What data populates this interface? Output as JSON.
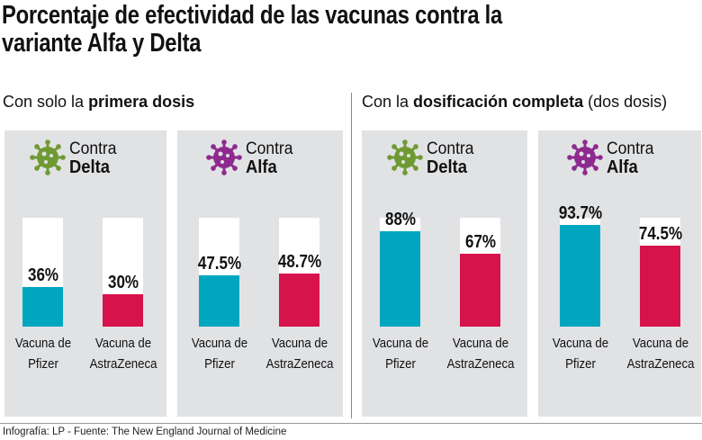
{
  "title_line1": "Porcentaje de efectividad de las vacunas contra la",
  "title_line2": "variante Alfa y Delta",
  "sections": [
    {
      "prefix": "Con solo la ",
      "bold": "primera dosis",
      "suffix": ""
    },
    {
      "prefix": "Con la ",
      "bold": "dosificación completa",
      "suffix": " (dos dosis)"
    }
  ],
  "colors": {
    "pfizer": "#00a6c0",
    "astrazeneca": "#d7134c",
    "delta_icon": "#6f9a33",
    "alfa_icon": "#8e2a8f",
    "panel": "#e1e2e4"
  },
  "chart_data": [
    {
      "type": "bar",
      "section": "Con solo la primera dosis",
      "title_top": "Contra",
      "title_bold": "Delta",
      "icon": "virus-icon",
      "icon_color": "#6f9a33",
      "categories": [
        "Vacuna de Pfizer",
        "Vacuna de AstraZeneca"
      ],
      "cat_lines": [
        [
          "Vacuna de",
          "Pfizer"
        ],
        [
          "Vacuna de",
          "AstraZeneca"
        ]
      ],
      "values": [
        36,
        30
      ],
      "labels": [
        "36%",
        "30%"
      ],
      "ylim": [
        0,
        100
      ]
    },
    {
      "type": "bar",
      "section": "Con solo la primera dosis",
      "title_top": "Contra",
      "title_bold": "Alfa",
      "icon": "virus-icon",
      "icon_color": "#8e2a8f",
      "categories": [
        "Vacuna de Pfizer",
        "Vacuna de AstraZeneca"
      ],
      "cat_lines": [
        [
          "Vacuna de",
          "Pfizer"
        ],
        [
          "Vacuna de",
          "AstraZeneca"
        ]
      ],
      "values": [
        47.5,
        48.7
      ],
      "labels": [
        "47.5%",
        "48.7%"
      ],
      "ylim": [
        0,
        100
      ]
    },
    {
      "type": "bar",
      "section": "Con la dosificación completa (dos dosis)",
      "title_top": "Contra",
      "title_bold": "Delta",
      "icon": "virus-icon",
      "icon_color": "#6f9a33",
      "categories": [
        "Vacuna de Pfizer",
        "Vacuna de AstraZeneca"
      ],
      "cat_lines": [
        [
          "Vacuna de",
          "Pfizer"
        ],
        [
          "Vacuna de",
          "AstraZeneca"
        ]
      ],
      "values": [
        88,
        67
      ],
      "labels": [
        "88%",
        "67%"
      ],
      "ylim": [
        0,
        100
      ]
    },
    {
      "type": "bar",
      "section": "Con la dosificación completa (dos dosis)",
      "title_top": "Contra",
      "title_bold": "Alfa",
      "icon": "virus-icon",
      "icon_color": "#8e2a8f",
      "categories": [
        "Vacuna de Pfizer",
        "Vacuna de AstraZeneca"
      ],
      "cat_lines": [
        [
          "Vacuna de",
          "Pfizer"
        ],
        [
          "Vacuna de",
          "AstraZeneca"
        ]
      ],
      "values": [
        93.7,
        74.5
      ],
      "labels": [
        "93.7%",
        "74.5%"
      ],
      "ylim": [
        0,
        100
      ]
    }
  ],
  "footer": "Infografía: LP - Fuente: The New England Journal of Medicine"
}
